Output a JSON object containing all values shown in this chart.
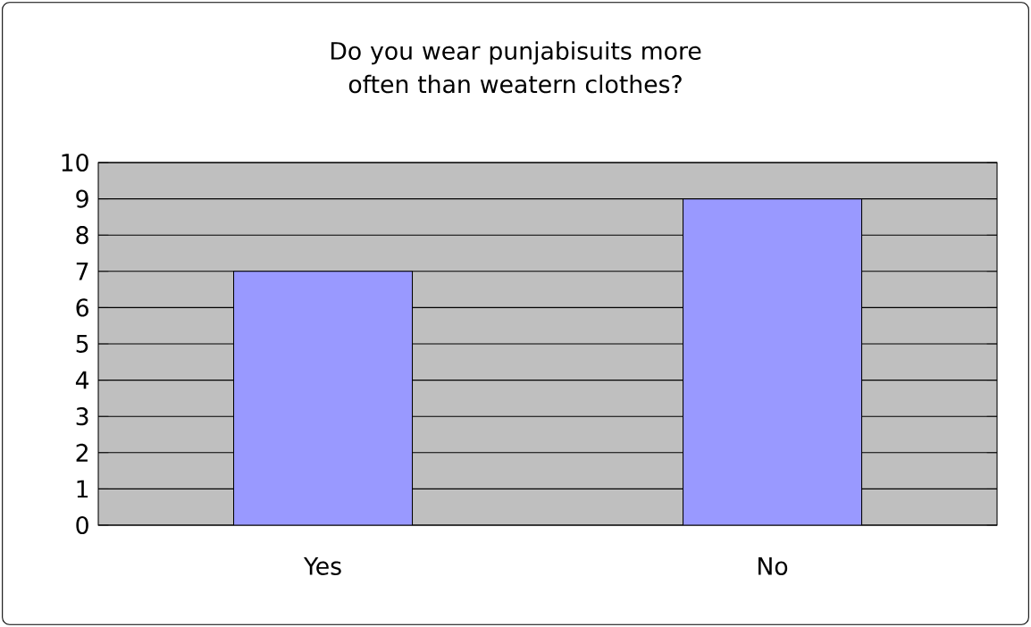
{
  "chart_data": {
    "type": "bar",
    "title": "Do you wear punjabisuits more often than weatern clothes?",
    "categories": [
      "Yes",
      "No"
    ],
    "values": [
      7,
      9
    ],
    "color": "#9999ff",
    "ylim": [
      0,
      10
    ],
    "yticks": [
      0,
      1,
      2,
      3,
      4,
      5,
      6,
      7,
      8,
      9,
      10
    ],
    "grid": "y"
  }
}
